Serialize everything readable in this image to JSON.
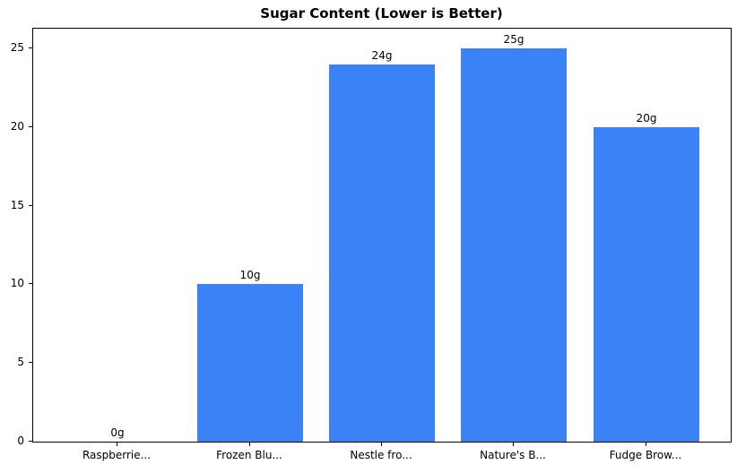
{
  "chart_data": {
    "type": "bar",
    "title": "Sugar Content (Lower is Better)",
    "categories": [
      "Raspberrie...",
      "Frozen Blu...",
      "Nestle fro...",
      "Nature's B...",
      "Fudge Brow..."
    ],
    "values": [
      0,
      10,
      24,
      25,
      20
    ],
    "bar_labels": [
      "0g",
      "10g",
      "24g",
      "25g",
      "20g"
    ],
    "xlabel": "",
    "ylabel": "",
    "ylim": [
      0,
      26.25
    ],
    "xlim": [
      -0.64,
      4.64
    ],
    "yticks": [
      0,
      5,
      10,
      15,
      20,
      25
    ],
    "bar_width_units": 0.8,
    "bar_color": "#3b82f6",
    "axis_color": "#000000",
    "text_color": "#000000",
    "background_color": "#ffffff",
    "grid": false,
    "legend": null
  }
}
